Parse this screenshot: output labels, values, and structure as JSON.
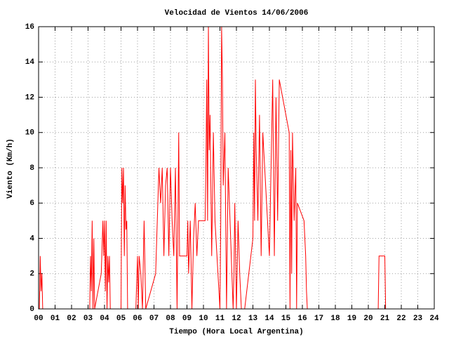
{
  "chart_data": {
    "type": "line",
    "title": "Velocidad de Vientos 14/06/2006",
    "xlabel": "Tiempo (Hora Local Argentina)",
    "ylabel": "Viento (Km/h)",
    "xlim": [
      0,
      24
    ],
    "ylim": [
      0,
      16
    ],
    "grid": true,
    "xticks": [
      {
        "value": 0,
        "label": "00"
      },
      {
        "value": 1,
        "label": "01"
      },
      {
        "value": 2,
        "label": "02"
      },
      {
        "value": 3,
        "label": "03"
      },
      {
        "value": 4,
        "label": "04"
      },
      {
        "value": 5,
        "label": "05"
      },
      {
        "value": 6,
        "label": "06"
      },
      {
        "value": 7,
        "label": "07"
      },
      {
        "value": 8,
        "label": "08"
      },
      {
        "value": 9,
        "label": "09"
      },
      {
        "value": 10,
        "label": "10"
      },
      {
        "value": 11,
        "label": "11"
      },
      {
        "value": 12,
        "label": "12"
      },
      {
        "value": 13,
        "label": "13"
      },
      {
        "value": 14,
        "label": "14"
      },
      {
        "value": 15,
        "label": "15"
      },
      {
        "value": 16,
        "label": "16"
      },
      {
        "value": 17,
        "label": "17"
      },
      {
        "value": 18,
        "label": "18"
      },
      {
        "value": 19,
        "label": "19"
      },
      {
        "value": 20,
        "label": "20"
      },
      {
        "value": 21,
        "label": "21"
      },
      {
        "value": 22,
        "label": "22"
      },
      {
        "value": 23,
        "label": "23"
      },
      {
        "value": 24,
        "label": "24"
      }
    ],
    "yticks": [
      0,
      2,
      4,
      6,
      8,
      10,
      12,
      14,
      16
    ],
    "color": "#ff0000",
    "x": [
      0.05,
      0.1,
      0.15,
      0.2,
      0.25,
      0.35,
      3.1,
      3.15,
      3.2,
      3.25,
      3.3,
      3.35,
      3.4,
      3.8,
      3.9,
      3.95,
      4.0,
      4.05,
      4.1,
      4.15,
      4.2,
      4.25,
      4.3,
      4.35,
      5.0,
      5.05,
      5.1,
      5.15,
      5.2,
      5.25,
      5.3,
      5.35,
      5.4,
      5.9,
      6.0,
      6.05,
      6.1,
      6.2,
      6.3,
      6.4,
      6.5,
      7.1,
      7.2,
      7.3,
      7.4,
      7.5,
      7.6,
      7.7,
      7.8,
      7.9,
      8.0,
      8.1,
      8.2,
      8.3,
      8.4,
      8.5,
      8.55,
      9.0,
      9.05,
      9.1,
      9.2,
      9.3,
      9.4,
      9.5,
      9.6,
      9.7,
      10.1,
      10.15,
      10.2,
      10.25,
      10.3,
      10.35,
      10.4,
      10.5,
      10.6,
      10.7,
      11.0,
      11.05,
      11.1,
      11.15,
      11.2,
      11.3,
      11.4,
      11.5,
      11.8,
      11.85,
      11.9,
      12.0,
      12.1,
      12.2,
      12.3,
      12.5,
      13.0,
      13.05,
      13.1,
      13.15,
      13.2,
      13.3,
      13.4,
      13.5,
      13.6,
      14.0,
      14.1,
      14.2,
      14.3,
      14.4,
      14.5,
      14.6,
      15.2,
      15.25,
      15.3,
      15.35,
      15.4,
      15.5,
      15.6,
      15.65,
      15.7,
      16.1,
      16.2,
      16.25,
      16.3,
      20.6,
      20.65,
      21.0,
      21.05
    ],
    "values": [
      0,
      3,
      1,
      2,
      0,
      0,
      0,
      3,
      1,
      5,
      0,
      4,
      0,
      2,
      5,
      3,
      5,
      1,
      5,
      0,
      3,
      1.5,
      3,
      0,
      0,
      8,
      6,
      8,
      3,
      7,
      4.5,
      5,
      0,
      0,
      3,
      0,
      3,
      2,
      0,
      5,
      0,
      2,
      5,
      8,
      6,
      8,
      3,
      7,
      8,
      3,
      8,
      5,
      3,
      8,
      0,
      10,
      3,
      3,
      5,
      2,
      5,
      0,
      4,
      6,
      3,
      5,
      5,
      8,
      13,
      5,
      16,
      9,
      11,
      3,
      10,
      5,
      0,
      5,
      16,
      13,
      7,
      10,
      0,
      8,
      0,
      2,
      6,
      0,
      5,
      2,
      0,
      0,
      4,
      10,
      5,
      13,
      9,
      5,
      11,
      3,
      10,
      3,
      8,
      13,
      3,
      12,
      5,
      13,
      10,
      0,
      9,
      2,
      10,
      5,
      8,
      0,
      6,
      5,
      3,
      1,
      0,
      0,
      3,
      3,
      0
    ]
  }
}
